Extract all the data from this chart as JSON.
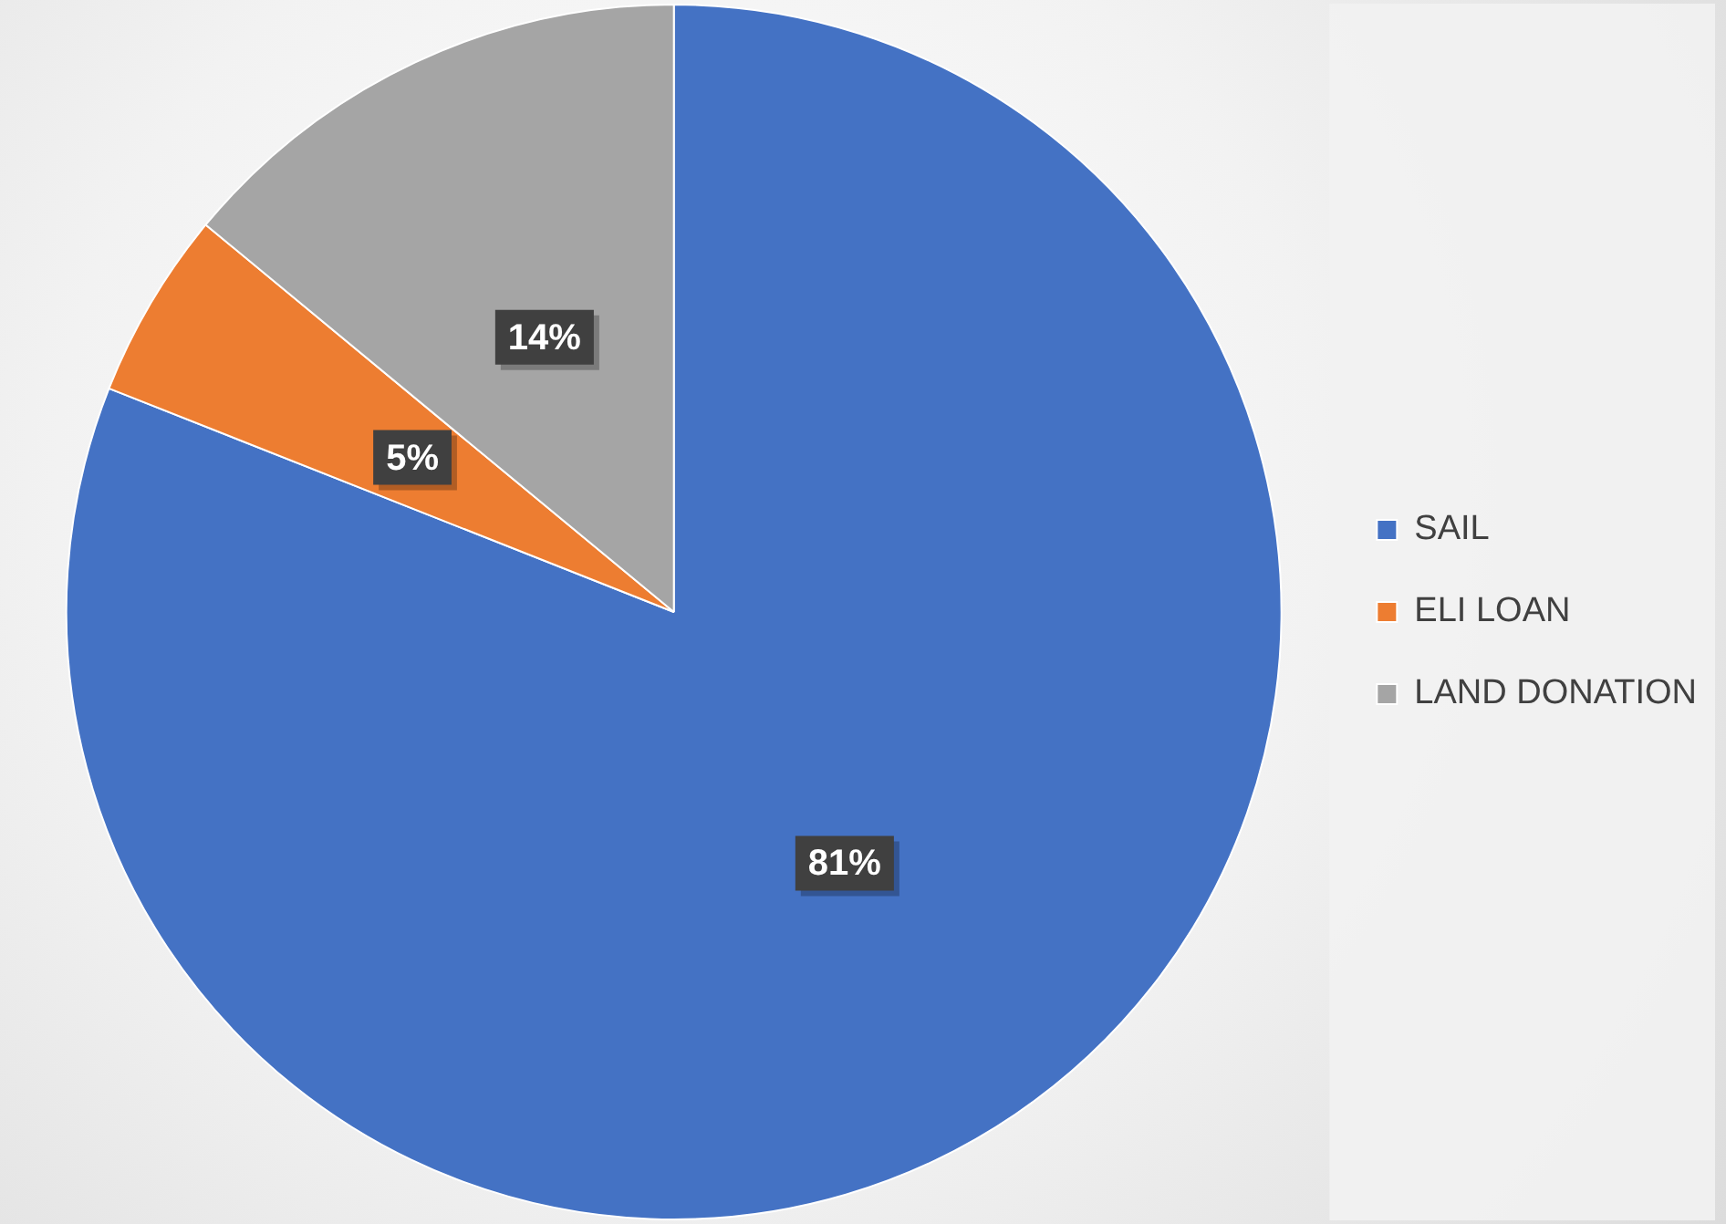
{
  "chart_data": {
    "type": "pie",
    "categories": [
      "SAIL",
      "ELI LOAN",
      "LAND DONATION"
    ],
    "values": [
      81,
      5,
      14
    ],
    "colors": [
      "#4472c4",
      "#ed7d31",
      "#a5a5a5"
    ],
    "value_labels": [
      "81%",
      "5%",
      "14%"
    ],
    "legend": "right"
  }
}
